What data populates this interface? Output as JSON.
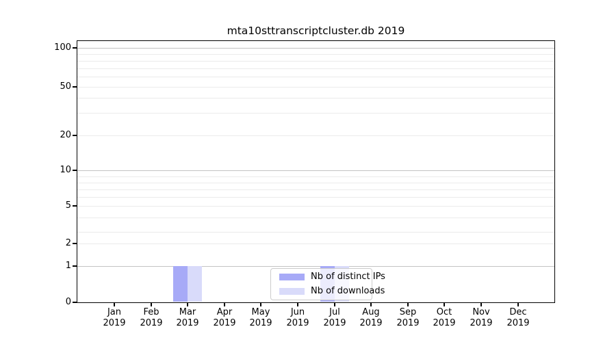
{
  "title": "mta10sttranscriptcluster.db 2019",
  "colors": {
    "distinct_ips": "#a7aaf7",
    "downloads": "#d9dbfa",
    "grid_major": "#c3c3c3",
    "grid_minor": "#ebebeb",
    "spine": "#000000"
  },
  "legend": {
    "items": [
      {
        "label": "Nb of distinct IPs",
        "color": "#a7aaf7"
      },
      {
        "label": "Nb of downloads",
        "color": "#d9dbfa"
      }
    ]
  },
  "y_axis": {
    "tick_labels": [
      "100",
      "50",
      "20",
      "10",
      "5",
      "2",
      "1",
      "0"
    ],
    "tick_values": [
      100,
      50,
      20,
      10,
      5,
      2,
      1,
      0
    ]
  },
  "x_axis": {
    "months": [
      "Jan",
      "Feb",
      "Mar",
      "Apr",
      "May",
      "Jun",
      "Jul",
      "Aug",
      "Sep",
      "Oct",
      "Nov",
      "Dec"
    ],
    "year": "2019"
  },
  "chart_data": {
    "type": "bar",
    "title": "mta10sttranscriptcluster.db 2019",
    "categories": [
      "Jan 2019",
      "Feb 2019",
      "Mar 2019",
      "Apr 2019",
      "May 2019",
      "Jun 2019",
      "Jul 2019",
      "Aug 2019",
      "Sep 2019",
      "Oct 2019",
      "Nov 2019",
      "Dec 2019"
    ],
    "series": [
      {
        "name": "Nb of distinct IPs",
        "color": "#a7aaf7",
        "values": [
          0,
          0,
          1,
          0,
          0,
          0,
          1,
          0,
          0,
          0,
          0,
          0
        ]
      },
      {
        "name": "Nb of downloads",
        "color": "#d9dbfa",
        "values": [
          0,
          0,
          1,
          0,
          0,
          0,
          1,
          0,
          0,
          0,
          0,
          0
        ]
      }
    ],
    "xlabel": "",
    "ylabel": "",
    "yscale": "symlog",
    "y_ticks": [
      0,
      1,
      2,
      5,
      10,
      20,
      50,
      100
    ],
    "ylim": [
      0,
      115
    ],
    "grid": true,
    "legend_position": "inside lower-center"
  }
}
